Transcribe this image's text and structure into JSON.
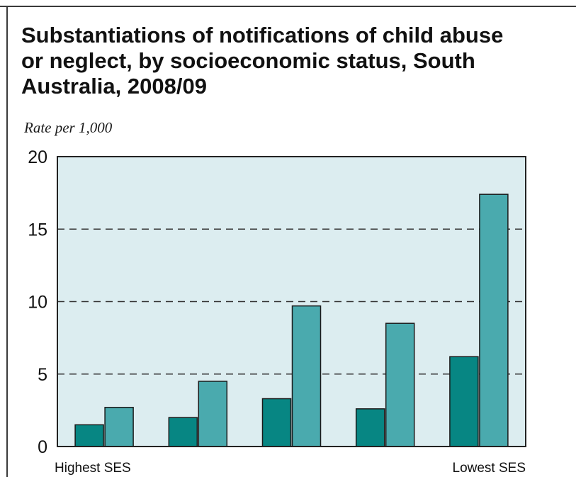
{
  "chart_data": {
    "type": "bar",
    "title": "Substantiations of notifications of child abuse\nor neglect, by socioeconomic status, South\nAustralia, 2008/09",
    "ylabel": "Rate per 1,000",
    "xlabel": "",
    "ylim": [
      0,
      20
    ],
    "yticks": [
      0,
      5,
      10,
      15,
      20
    ],
    "grid": true,
    "categories": [
      "Highest SES",
      "",
      "",
      "",
      "Lowest SES"
    ],
    "series": [
      {
        "values": [
          1.5,
          2.0,
          3.3,
          2.6,
          6.2
        ]
      },
      {
        "values": [
          2.7,
          4.5,
          9.7,
          8.5,
          17.4
        ]
      }
    ],
    "colors": {
      "series": [
        "#078683",
        "#4aaaae"
      ],
      "plot_background": "#dcedf0",
      "grid": "#333333",
      "axis": "#222222"
    }
  }
}
